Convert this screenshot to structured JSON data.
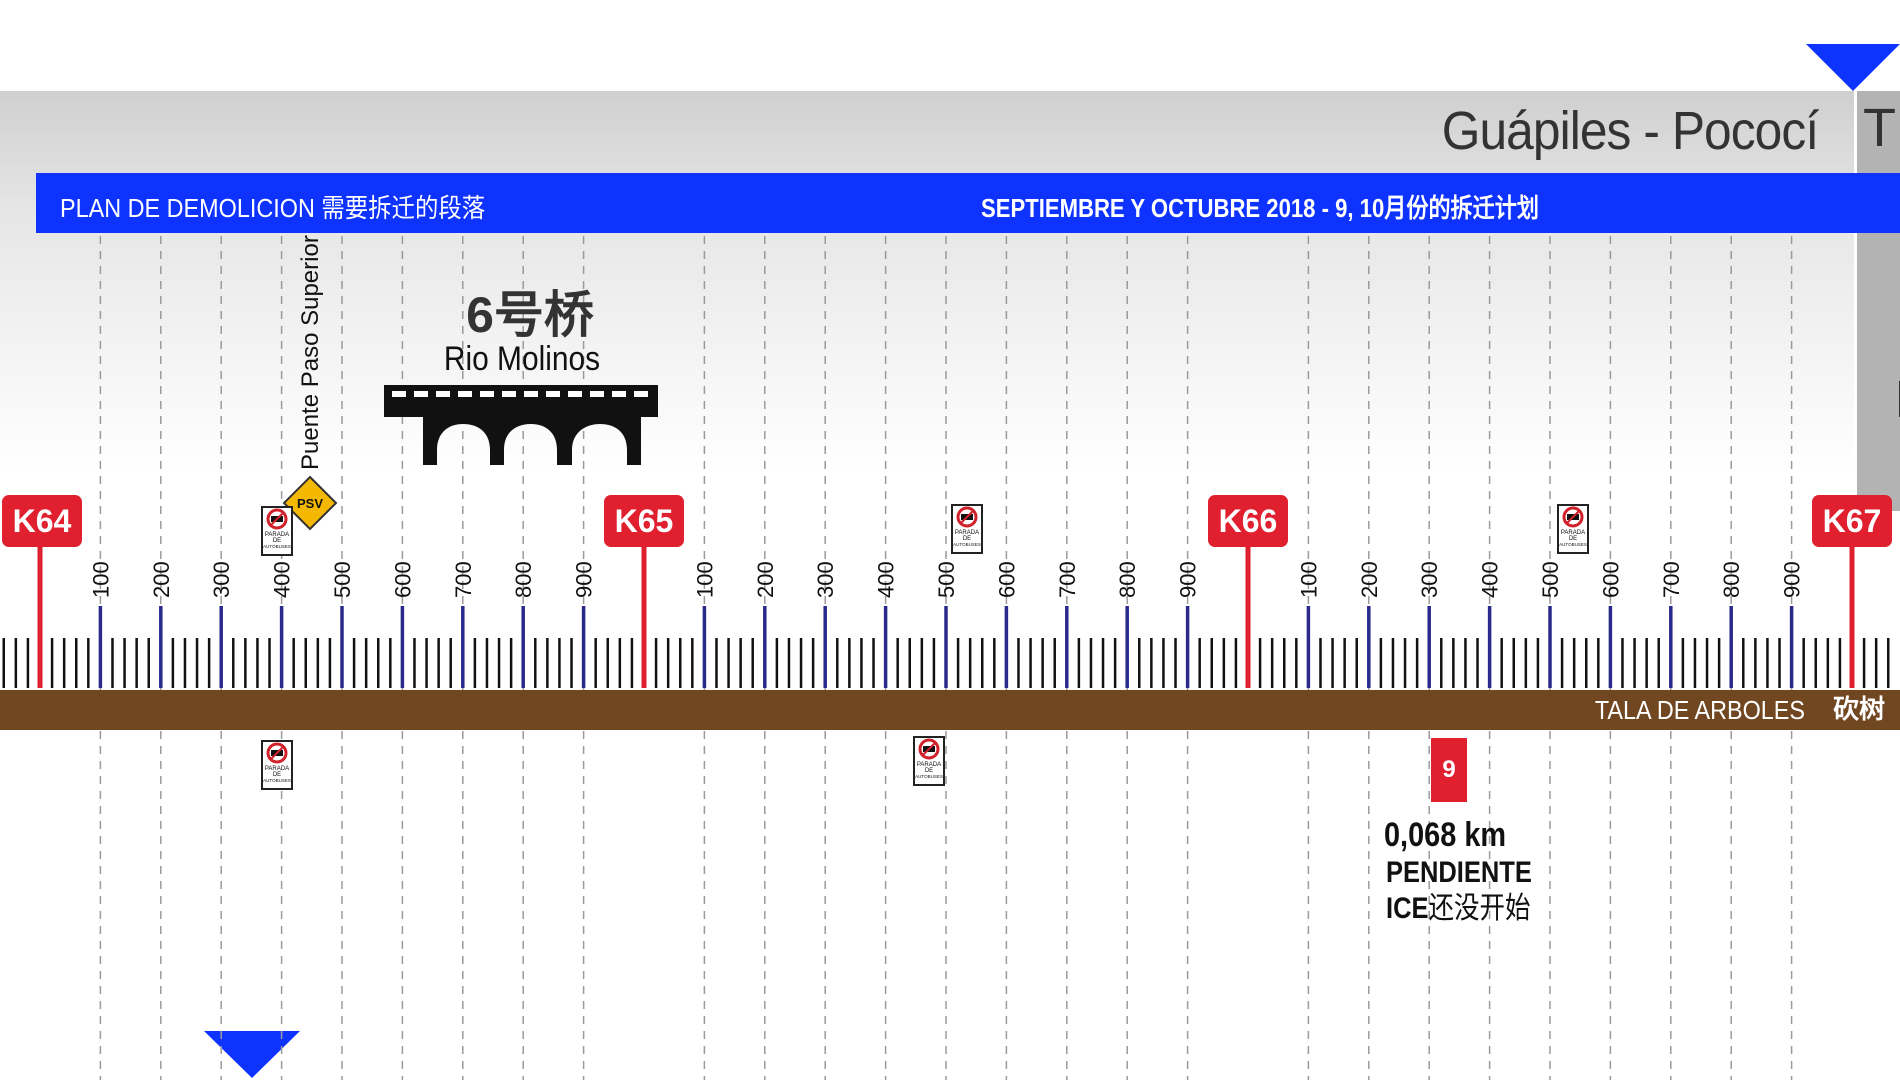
{
  "title": "Guápiles - Pococí",
  "right_panel_letter": "T",
  "header": {
    "left_label": "PLAN DE DEMOLICION  需要拆迁的段落",
    "right_label": "SEPTIEMBRE Y OCTUBRE 2018 - 9, 10月份的拆迁计划"
  },
  "colors": {
    "header_bar": "#0f33ff",
    "km_marker": "#e0202f",
    "road": "#714722",
    "hundred_tick": "#2a2a8c",
    "bridge": "#111111",
    "psv_sign": "#f5b800"
  },
  "overpass_label": "Puente Paso Superior",
  "psv_sign": "PSV",
  "bridge": {
    "number": "6号桥",
    "name": "Rio Molinos"
  },
  "km_markers": [
    "K64",
    "K65",
    "K66",
    "K67"
  ],
  "hundred_labels": [
    "100",
    "200",
    "300",
    "400",
    "500",
    "600",
    "700",
    "800",
    "900"
  ],
  "bus_sign": {
    "line1": "PARADA",
    "line2": "DE",
    "line3": "AUTOBUSES"
  },
  "road_label": "TALA DE ARBOLES",
  "road_label_cn": "砍树",
  "segment": {
    "number": "9",
    "length": "0,068 km",
    "status": "PENDIENTE",
    "note_prefix": "ICE",
    "note_cn": "还没开始"
  }
}
